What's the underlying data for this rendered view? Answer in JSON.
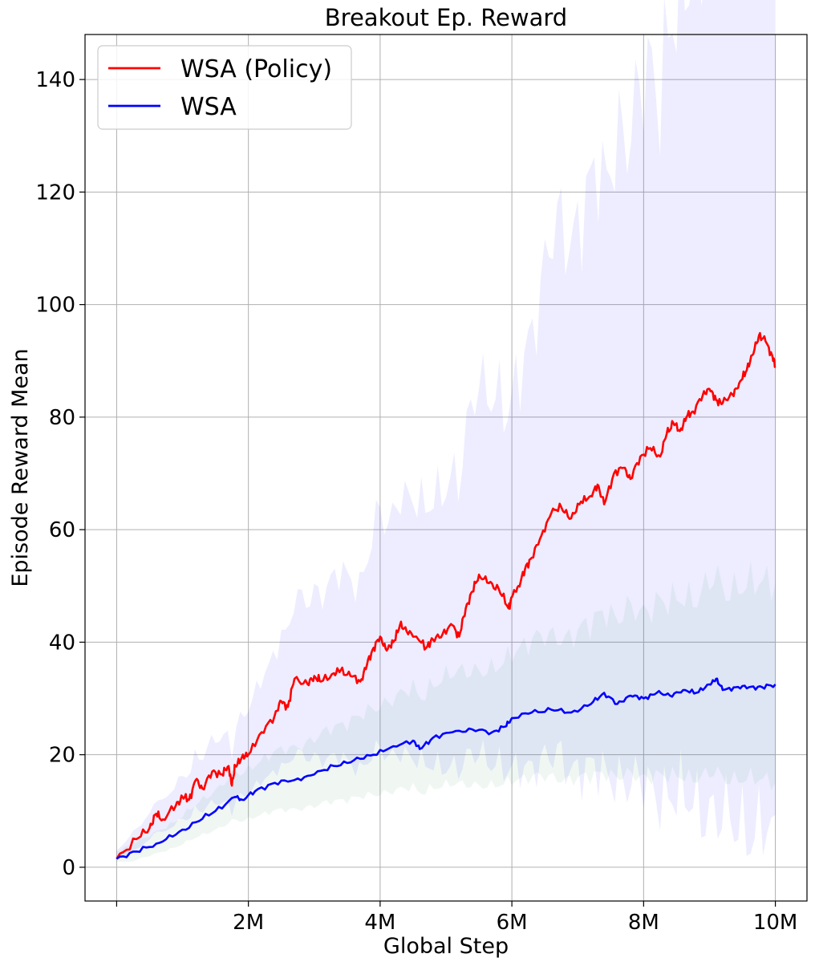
{
  "chart_data": {
    "type": "line",
    "title": "Breakout Ep. Reward",
    "xlabel": "Global Step",
    "ylabel": "Episode Reward Mean",
    "xlim": [
      -0.48,
      10.48
    ],
    "ylim": [
      -6,
      148
    ],
    "grid": true,
    "legend_position": "top-left",
    "x_ticks": [
      {
        "value": 0,
        "label": ""
      },
      {
        "value": 2,
        "label": "2M"
      },
      {
        "value": 4,
        "label": "4M"
      },
      {
        "value": 6,
        "label": "6M"
      },
      {
        "value": 8,
        "label": "8M"
      },
      {
        "value": 10,
        "label": "10M"
      }
    ],
    "y_ticks": [
      0,
      20,
      40,
      60,
      80,
      100,
      120,
      140
    ],
    "series": [
      {
        "name": "WSA (Policy)",
        "color": "#ff0000",
        "band_color": "#0000ff",
        "x": [
          0,
          0.3,
          0.5,
          0.6,
          0.7,
          0.9,
          1.0,
          1.1,
          1.2,
          1.3,
          1.45,
          1.6,
          1.7,
          1.75,
          1.8,
          1.9,
          2.0,
          2.2,
          2.4,
          2.5,
          2.6,
          2.7,
          2.9,
          3.0,
          3.1,
          3.3,
          3.4,
          3.55,
          3.7,
          3.8,
          3.9,
          4.0,
          4.1,
          4.2,
          4.3,
          4.4,
          4.55,
          4.7,
          4.8,
          4.95,
          5.1,
          5.2,
          5.3,
          5.4,
          5.5,
          5.65,
          5.8,
          5.95,
          6.0,
          6.1,
          6.2,
          6.3,
          6.45,
          6.6,
          6.75,
          6.9,
          7.05,
          7.2,
          7.3,
          7.4,
          7.55,
          7.7,
          7.8,
          7.95,
          8.1,
          8.25,
          8.35,
          8.45,
          8.55,
          8.65,
          8.75,
          8.9,
          9.0,
          9.1,
          9.2,
          9.35,
          9.45,
          9.55,
          9.65,
          9.75,
          9.85,
          9.95,
          10.0
        ],
        "y": [
          1.5,
          5,
          7,
          9.5,
          8.5,
          11,
          12.5,
          12,
          15.5,
          14,
          17,
          16.5,
          18,
          14.5,
          18,
          19.5,
          20,
          24,
          27,
          29.5,
          28.5,
          33.5,
          32.5,
          34,
          33,
          34.5,
          35,
          34,
          33,
          36,
          39,
          41,
          38.5,
          40,
          43,
          42,
          41,
          39,
          40.5,
          41.5,
          43,
          41,
          46,
          49,
          52,
          50.5,
          49.5,
          46,
          48,
          50,
          53,
          55,
          59,
          63,
          64,
          62,
          65,
          66,
          68,
          64.5,
          70,
          71,
          69,
          73,
          74.5,
          73,
          77,
          79,
          77.5,
          80,
          81,
          84,
          85,
          83,
          82.5,
          84,
          86,
          88,
          91,
          94.5,
          93.5,
          91,
          89
        ]
      },
      {
        "name": "WSA",
        "color": "#0000ff",
        "band_color": "#2e8b57",
        "x": [
          0,
          0.3,
          0.6,
          0.9,
          1.2,
          1.5,
          1.8,
          1.9,
          2.1,
          2.4,
          2.7,
          3.0,
          3.3,
          3.6,
          3.9,
          4.2,
          4.5,
          4.6,
          4.8,
          5.1,
          5.4,
          5.7,
          5.9,
          6.0,
          6.3,
          6.6,
          6.9,
          7.2,
          7.4,
          7.6,
          7.8,
          8.0,
          8.2,
          8.4,
          8.6,
          8.8,
          9.0,
          9.1,
          9.2,
          9.4,
          9.6,
          9.8,
          10.0
        ],
        "y": [
          1.5,
          2.8,
          4.2,
          5.8,
          8,
          10,
          12.5,
          12,
          13.5,
          15,
          15.5,
          16.5,
          18,
          19,
          20,
          21.5,
          22.5,
          21,
          23,
          24,
          24.5,
          24,
          25,
          26.5,
          27.5,
          28,
          27.5,
          29,
          31,
          29,
          30.5,
          30,
          31,
          30.5,
          31.5,
          31,
          32.5,
          33.5,
          31.5,
          32,
          32,
          32,
          32.5
        ]
      }
    ]
  }
}
